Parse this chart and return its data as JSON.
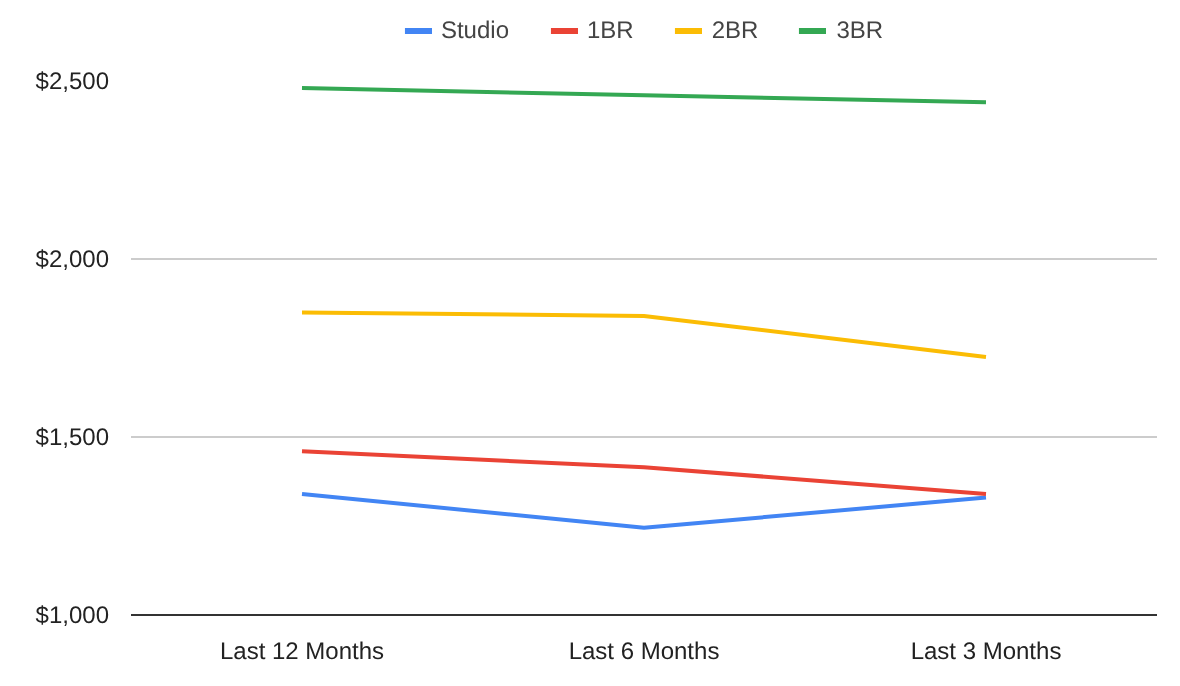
{
  "chart_data": {
    "type": "line",
    "categories": [
      "Last 12 Months",
      "Last 6 Months",
      "Last 3 Months"
    ],
    "series": [
      {
        "name": "Studio",
        "color": "#4285f4",
        "values": [
          1340,
          1245,
          1330
        ]
      },
      {
        "name": "1BR",
        "color": "#ea4335",
        "values": [
          1460,
          1415,
          1340
        ]
      },
      {
        "name": "2BR",
        "color": "#fbbc04",
        "values": [
          1850,
          1840,
          1725
        ]
      },
      {
        "name": "3BR",
        "color": "#34a853",
        "values": [
          2480,
          2460,
          2440
        ]
      }
    ],
    "ylim": [
      1000,
      2500
    ],
    "yticks": [
      {
        "value": 1000,
        "label": "$1,000"
      },
      {
        "value": 1500,
        "label": "$1,500"
      },
      {
        "value": 2000,
        "label": "$2,000"
      },
      {
        "value": 2500,
        "label": "$2,500"
      }
    ],
    "grid": "y",
    "legend": "top",
    "marker": "none",
    "line_style": "solid"
  }
}
